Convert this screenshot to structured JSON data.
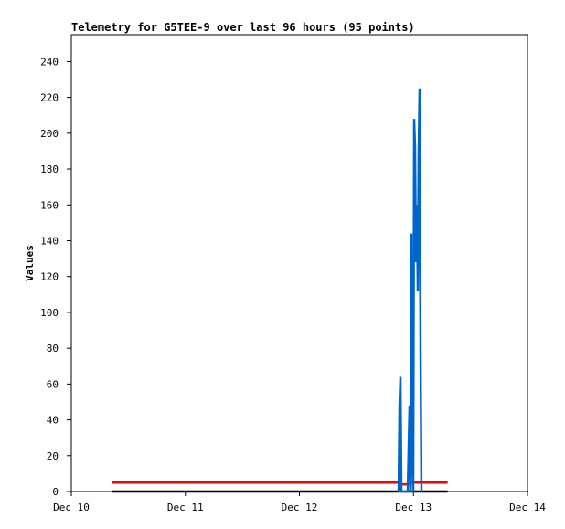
{
  "chart_data": {
    "type": "line",
    "title": "Telemetry for G5TEE-9 over last 96 hours (95 points)",
    "ylabel": "Values",
    "xlim": [
      0,
      4
    ],
    "xticks": [
      {
        "value": 0,
        "label": "Dec 10"
      },
      {
        "value": 1,
        "label": "Dec 11"
      },
      {
        "value": 2,
        "label": "Dec 12"
      },
      {
        "value": 3,
        "label": "Dec 13"
      },
      {
        "value": 4,
        "label": "Dec 14"
      }
    ],
    "ylim": [
      0,
      255
    ],
    "yticks": [
      0,
      20,
      40,
      60,
      80,
      100,
      120,
      140,
      160,
      180,
      200,
      220,
      240
    ],
    "grid": false,
    "series": [
      {
        "color": "#ff0000",
        "x": [
          0.36,
          2.88,
          2.9,
          2.96,
          2.98,
          3.3
        ],
        "values": [
          5,
          5,
          4,
          4,
          5,
          5
        ]
      },
      {
        "color": "#000000",
        "x": [
          0.36,
          3.3
        ],
        "values": [
          0,
          0
        ]
      },
      {
        "color": "#0066cc",
        "x": [
          2.87,
          2.878,
          2.886,
          2.894,
          2.95,
          2.958,
          2.966,
          2.974,
          2.982,
          2.99,
          2.998,
          3.006,
          3.014,
          3.022,
          3.03,
          3.038,
          3.046,
          3.054,
          3.062,
          3.07,
          3.078
        ],
        "values": [
          0,
          48,
          64,
          0,
          0,
          25,
          48,
          0,
          144,
          25,
          0,
          208,
          192,
          128,
          160,
          112,
          192,
          225,
          80,
          0,
          0
        ]
      }
    ]
  }
}
